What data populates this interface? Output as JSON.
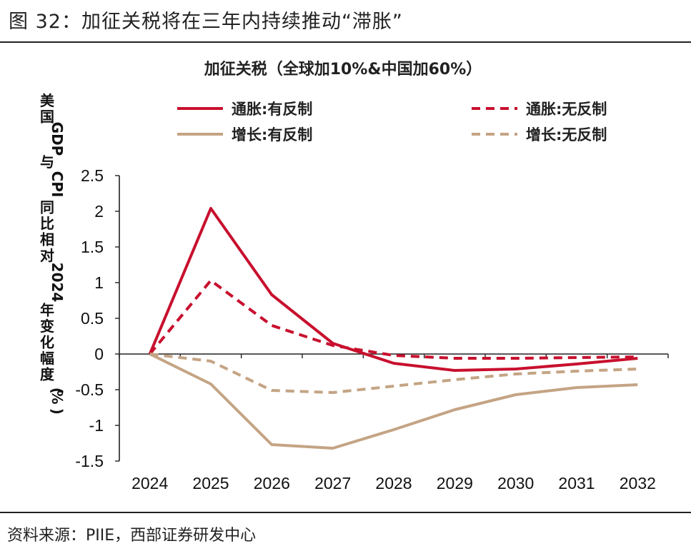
{
  "caption": "图 32：加征关税将在三年内持续推动“滞胀”",
  "source": "资料来源：PIIE，西部证券研发中心",
  "chart_data": {
    "type": "line",
    "title": "加征关税（全球加10%&中国加60%）",
    "ylabel": "美国GDP与CPI同比相对2024年变化幅度（%）",
    "xlabel": "",
    "categories": [
      "2024",
      "2025",
      "2026",
      "2027",
      "2028",
      "2029",
      "2030",
      "2031",
      "2032"
    ],
    "yticks": [
      "2.5",
      "2",
      "1.5",
      "1",
      "0.5",
      "0",
      "-0.5",
      "-1",
      "-1.5"
    ],
    "ylim": [
      -1.5,
      2.5
    ],
    "grid": false,
    "legend_position": "top",
    "series": [
      {
        "name": "通胀:有反制",
        "color": "#c8102e",
        "dash": "solid",
        "values": [
          0,
          2.04,
          0.83,
          0.15,
          -0.13,
          -0.23,
          -0.21,
          -0.14,
          -0.06
        ]
      },
      {
        "name": "通胀:无反制",
        "color": "#c8102e",
        "dash": "dashed",
        "values": [
          0,
          1.03,
          0.4,
          0.12,
          -0.02,
          -0.06,
          -0.06,
          -0.05,
          -0.04
        ]
      },
      {
        "name": "增长:有反制",
        "color": "#c4a484",
        "dash": "solid",
        "values": [
          0,
          -0.42,
          -1.27,
          -1.32,
          -1.06,
          -0.78,
          -0.57,
          -0.47,
          -0.43
        ]
      },
      {
        "name": "增长:无反制",
        "color": "#c4a484",
        "dash": "dashed",
        "values": [
          0,
          -0.1,
          -0.51,
          -0.54,
          -0.45,
          -0.36,
          -0.28,
          -0.24,
          -0.21
        ]
      }
    ]
  }
}
